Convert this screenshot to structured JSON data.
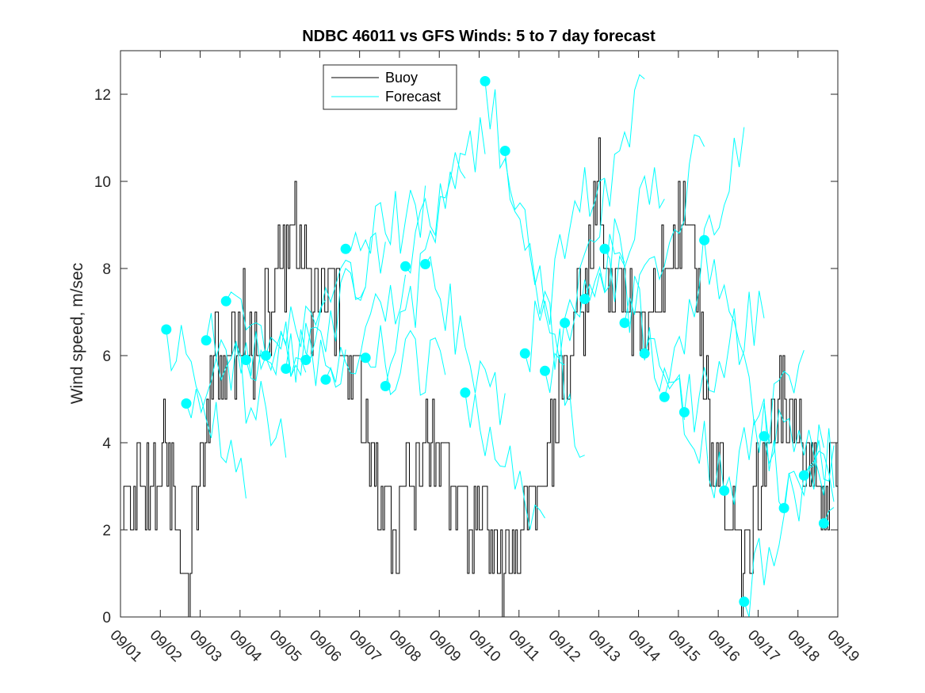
{
  "chart_data": {
    "type": "line",
    "title": "NDBC 46011 vs GFS Winds: 5 to 7 day forecast",
    "xlabel": "",
    "ylabel": "Wind speed, m/sec",
    "xlim": [
      1,
      19
    ],
    "ylim": [
      0,
      13
    ],
    "yticks": [
      0,
      2,
      4,
      6,
      8,
      10,
      12
    ],
    "xtick_values": [
      1,
      2,
      3,
      4,
      5,
      6,
      7,
      8,
      9,
      10,
      11,
      12,
      13,
      14,
      15,
      16,
      17,
      18,
      19
    ],
    "xtick_labels": [
      "09/01",
      "09/02",
      "09/03",
      "09/04",
      "09/05",
      "09/06",
      "09/07",
      "09/08",
      "09/09",
      "09/10",
      "09/11",
      "09/12",
      "09/13",
      "09/14",
      "09/15",
      "09/16",
      "09/17",
      "09/18",
      "09/19"
    ],
    "legend": {
      "position": "top-center",
      "entries": [
        "Buoy",
        "Forecast"
      ]
    },
    "colors": {
      "buoy": "#000000",
      "forecast": "#00ffff",
      "axes": "#262626"
    },
    "buoy_daily_profile": [
      {
        "day": 1.0,
        "value": 2
      },
      {
        "day": 1.5,
        "value": 3
      },
      {
        "day": 1.9,
        "value": 3
      },
      {
        "day": 2.1,
        "value": 4
      },
      {
        "day": 2.4,
        "value": 2
      },
      {
        "day": 2.7,
        "value": 1
      },
      {
        "day": 3.0,
        "value": 3
      },
      {
        "day": 3.3,
        "value": 6
      },
      {
        "day": 3.6,
        "value": 5
      },
      {
        "day": 4.0,
        "value": 7
      },
      {
        "day": 4.5,
        "value": 6
      },
      {
        "day": 5.0,
        "value": 8
      },
      {
        "day": 5.4,
        "value": 9
      },
      {
        "day": 5.8,
        "value": 7
      },
      {
        "day": 6.2,
        "value": 8
      },
      {
        "day": 6.6,
        "value": 6
      },
      {
        "day": 7.0,
        "value": 5
      },
      {
        "day": 7.4,
        "value": 3
      },
      {
        "day": 7.8,
        "value": 2
      },
      {
        "day": 8.2,
        "value": 3
      },
      {
        "day": 8.8,
        "value": 4
      },
      {
        "day": 9.3,
        "value": 3
      },
      {
        "day": 9.7,
        "value": 2
      },
      {
        "day": 10.2,
        "value": 2
      },
      {
        "day": 10.6,
        "value": 1
      },
      {
        "day": 11.0,
        "value": 2
      },
      {
        "day": 11.4,
        "value": 3
      },
      {
        "day": 11.8,
        "value": 4
      },
      {
        "day": 12.2,
        "value": 6
      },
      {
        "day": 12.6,
        "value": 7
      },
      {
        "day": 13.0,
        "value": 10
      },
      {
        "day": 13.3,
        "value": 8
      },
      {
        "day": 13.8,
        "value": 7
      },
      {
        "day": 14.2,
        "value": 6
      },
      {
        "day": 14.6,
        "value": 8
      },
      {
        "day": 15.0,
        "value": 9
      },
      {
        "day": 15.4,
        "value": 8
      },
      {
        "day": 15.8,
        "value": 4
      },
      {
        "day": 16.1,
        "value": 3
      },
      {
        "day": 16.5,
        "value": 1
      },
      {
        "day": 16.8,
        "value": 2
      },
      {
        "day": 17.2,
        "value": 4
      },
      {
        "day": 17.6,
        "value": 5
      },
      {
        "day": 18.0,
        "value": 4
      },
      {
        "day": 18.5,
        "value": 3
      },
      {
        "day": 19.0,
        "value": 4
      }
    ],
    "forecast_init_points": [
      {
        "x": 2.15,
        "y": 6.6
      },
      {
        "x": 2.65,
        "y": 4.9
      },
      {
        "x": 3.15,
        "y": 6.35
      },
      {
        "x": 3.65,
        "y": 7.25
      },
      {
        "x": 4.15,
        "y": 5.9
      },
      {
        "x": 4.65,
        "y": 6.0
      },
      {
        "x": 5.15,
        "y": 5.7
      },
      {
        "x": 5.65,
        "y": 5.9
      },
      {
        "x": 6.15,
        "y": 5.45
      },
      {
        "x": 6.65,
        "y": 8.45
      },
      {
        "x": 7.15,
        "y": 5.95
      },
      {
        "x": 7.65,
        "y": 5.3
      },
      {
        "x": 8.15,
        "y": 8.05
      },
      {
        "x": 8.65,
        "y": 8.1
      },
      {
        "x": 9.65,
        "y": 5.15
      },
      {
        "x": 10.15,
        "y": 12.3
      },
      {
        "x": 10.65,
        "y": 10.7
      },
      {
        "x": 11.15,
        "y": 6.05
      },
      {
        "x": 11.65,
        "y": 5.65
      },
      {
        "x": 12.15,
        "y": 6.75
      },
      {
        "x": 12.65,
        "y": 7.3
      },
      {
        "x": 13.15,
        "y": 8.45
      },
      {
        "x": 13.65,
        "y": 6.75
      },
      {
        "x": 14.15,
        "y": 6.05
      },
      {
        "x": 14.65,
        "y": 5.05
      },
      {
        "x": 15.15,
        "y": 4.7
      },
      {
        "x": 15.65,
        "y": 8.65
      },
      {
        "x": 16.15,
        "y": 2.9
      },
      {
        "x": 16.65,
        "y": 0.35
      },
      {
        "x": 17.15,
        "y": 4.15
      },
      {
        "x": 17.65,
        "y": 2.5
      },
      {
        "x": 18.15,
        "y": 3.25
      },
      {
        "x": 18.65,
        "y": 2.15
      }
    ],
    "forecast_end_values": [
      3.4,
      6.6,
      4.1,
      5.3,
      6.8,
      6.0,
      8.3,
      8.7,
      7.7,
      9.4,
      5.7,
      10.6,
      11.2,
      4.5,
      1.6,
      5.2,
      3.8,
      10.7,
      8.9,
      12.6,
      10.3,
      4.7,
      10.8,
      3.1,
      11.3,
      7.3,
      2.9,
      5.6,
      4.2,
      3.4,
      4.4,
      3.7,
      2.7
    ]
  }
}
